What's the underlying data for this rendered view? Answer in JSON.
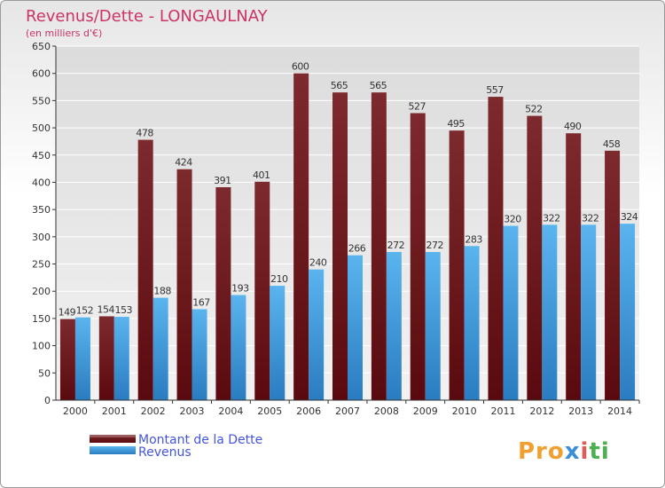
{
  "chart_data": {
    "type": "bar",
    "title": "Revenus/Dette - LONGAULNAY",
    "subtitle": "(en milliers d'€)",
    "xlabel": "",
    "ylabel": "",
    "ylim": [
      0,
      650
    ],
    "yticks": [
      0,
      50,
      100,
      150,
      200,
      250,
      300,
      350,
      400,
      450,
      500,
      550,
      600,
      650
    ],
    "grid": true,
    "legend_position": "bottom-left",
    "categories": [
      "2000",
      "2001",
      "2002",
      "2003",
      "2004",
      "2005",
      "2006",
      "2007",
      "2008",
      "2009",
      "2010",
      "2011",
      "2012",
      "2013",
      "2014"
    ],
    "series": [
      {
        "name": "Montant de la Dette",
        "color": "#7b1e22",
        "values": [
          149,
          154,
          478,
          424,
          391,
          401,
          600,
          565,
          565,
          527,
          495,
          557,
          522,
          490,
          458
        ]
      },
      {
        "name": "Revenus",
        "color": "#4da6e6",
        "values": [
          152,
          153,
          188,
          167,
          193,
          210,
          240,
          266,
          272,
          272,
          283,
          320,
          322,
          322,
          324
        ]
      }
    ]
  },
  "brand": {
    "logo_text": "Proxiti"
  },
  "colors": {
    "title": "#cc3366",
    "legend_text": "#4455dd",
    "axis_text": "#333333"
  }
}
